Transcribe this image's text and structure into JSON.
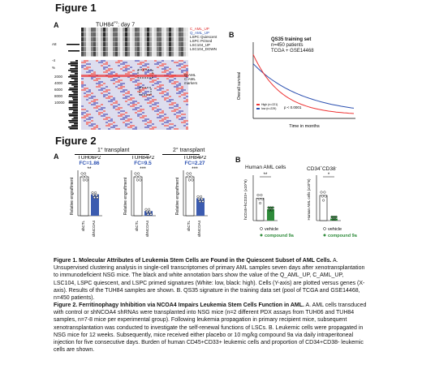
{
  "figure1": {
    "title": "Figure 1",
    "panel_a": {
      "label": "A",
      "header": "TUH84",
      "header_sup": "P2",
      "header_suffix": ": day 7",
      "row_labels": [
        "C_AML_UP",
        "Q_AML_UP",
        "LSPC Quiescent",
        "LSPC Primed",
        "LSC104_UP",
        "LSC104_DOWN"
      ],
      "row_label_colors": [
        "#d22",
        "#2a4fb0",
        "#111",
        "#111",
        "#111",
        "#111"
      ],
      "left_labels": [
        "A8",
        "-4",
        "%"
      ],
      "right_labels": [
        "Q-AML",
        "C-AML",
        "markers"
      ],
      "left_ticks": [
        "2000",
        "4000",
        "6000",
        "8000",
        "10000"
      ]
    },
    "panel_b": {
      "label": "B",
      "legend_title": "QS35 training set",
      "legend_lines": [
        "n=450 patients",
        "TCGA + GSE14468"
      ],
      "ylabel": "Overall survival",
      "xlabel": "Time in months",
      "pvalue": "p < 0.0001",
      "series_labels": [
        "High (n=221)",
        "low (n=229)"
      ]
    }
  },
  "figure2": {
    "title": "Figure 2",
    "panel_a": {
      "label": "A",
      "transplant1": "1° transplant",
      "transplant2": "2° transplant",
      "groups": [
        {
          "name": "TUH06",
          "sup": "P2",
          "fc": "FC=1.86",
          "sig": "**"
        },
        {
          "name": "TUH84",
          "sup": "P2",
          "fc": "FC=9.5",
          "sig": "***"
        },
        {
          "name": "TUH84",
          "sup": "P2",
          "fc": "FC=2.27",
          "sig": "***"
        }
      ],
      "ylabel": "Relative engraftment",
      "xlabels": [
        "shCTL",
        "shNCOA4"
      ]
    },
    "panel_b": {
      "label": "B",
      "title_left": "Human AML cells",
      "title_right": "CD34+CD38-",
      "ylabel_left": "hCD45+hCD33+ (x10^6)",
      "ylabel_right": "Human AML cells (x10^6)",
      "sig_left": "**",
      "sig_right": "*",
      "legend": [
        "vehicle",
        "compound 9a"
      ]
    }
  },
  "captions": {
    "fig1_bold": "Figure 1. Molecular Attributes of Leukemia Stem Cells are Found in the Quiescent Subset of AML Cells.",
    "fig1_body": " A. Unsupervised clustering analysis in single-cell transcriptomes of primary AML samples seven days after xenotransplantation to immunodeficient NSG mice. The black and white annotation bars show the value of the Q_AML_UP, C_AML_UP, LSC104, LSPC quiescent, and LSPC primed signatures (White: low, black: high). Cells (Y-axis) are plotted versus genes (X-axis). Results of the TUH84 samples are shown. B. QS35 signature in the training data set (pool of TCGA and GSE14468, n=450 patients).",
    "fig2_bold": "Figure 2. Ferritinophagy Inhibition via NCOA4 Impairs Leukemia Stem Cells Function in AML.",
    "fig2_body": " A. AML cells transduced with control or shNCOA4 shRNAs were transplanted into NSG mice (n=2 different PDX assays from TUH06 and TUH84 samples, n=7-8 mice per experimental group). Following leukemia propagation in primary recipient mice, subsequent xenotransplantation was conducted to investigate the self-renewal functions of LSCs. B. Leukemic cells were propagated in NSG mice for 12 weeks. Subsequently, mice received either placebo or 10 mg/kg compound 9a via daily intraperitoneal injection for five consecutive days. Burden of human CD45+CD33+ leukemic cells and proportion of CD34+CD38- leukemic cells are shown."
  }
}
